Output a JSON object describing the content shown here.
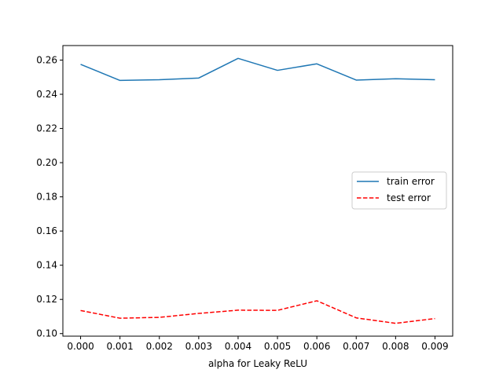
{
  "chart_data": {
    "type": "line",
    "title": "",
    "xlabel": "alpha for Leaky ReLU",
    "ylabel": "",
    "x": [
      0.0,
      0.001,
      0.002,
      0.003,
      0.004,
      0.005,
      0.006,
      0.007,
      0.008,
      0.009
    ],
    "xticks": [
      "0.000",
      "0.001",
      "0.002",
      "0.003",
      "0.004",
      "0.005",
      "0.006",
      "0.007",
      "0.008",
      "0.009"
    ],
    "xlim": [
      -0.00045,
      0.00945
    ],
    "ylim": [
      0.0985,
      0.2685
    ],
    "yticks": [
      "0.10",
      "0.12",
      "0.14",
      "0.16",
      "0.18",
      "0.20",
      "0.22",
      "0.24",
      "0.26"
    ],
    "grid": false,
    "legend_position": "center-right",
    "series": [
      {
        "name": "train error",
        "color": "#1f77b4",
        "style": "solid",
        "values": [
          0.2575,
          0.2481,
          0.2485,
          0.2495,
          0.261,
          0.254,
          0.2578,
          0.2483,
          0.2491,
          0.2485
        ]
      },
      {
        "name": "test error",
        "color": "#ff0000",
        "style": "dashed",
        "values": [
          0.1135,
          0.109,
          0.1095,
          0.1118,
          0.1137,
          0.1136,
          0.1192,
          0.1092,
          0.106,
          0.1088
        ]
      }
    ]
  }
}
